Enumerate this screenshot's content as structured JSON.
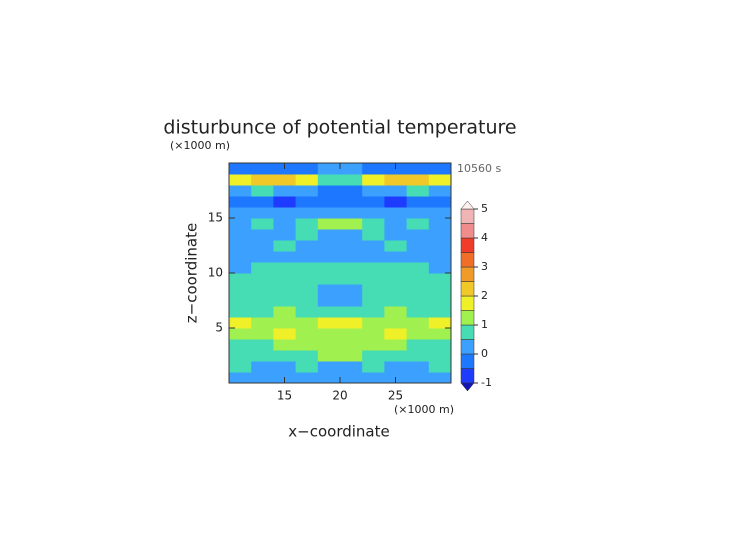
{
  "chart_data": {
    "type": "contour",
    "title": "disturbunce of potential temperature",
    "y_unit": "(×1000 m)",
    "x_unit": "(×1000 m)",
    "time_label": "10560 s",
    "xlabel": "x−coordinate",
    "ylabel": "z−coordinate",
    "xlim": [
      10,
      30
    ],
    "ylim": [
      0,
      20
    ],
    "xticks": [
      15,
      20,
      25
    ],
    "yticks": [
      5,
      10,
      15
    ],
    "x": [
      11,
      13,
      15,
      17,
      19,
      21,
      23,
      25,
      27,
      29
    ],
    "y": [
      0.5,
      1.5,
      2.5,
      3.5,
      4.5,
      5.5,
      6.5,
      7.5,
      8.5,
      9.5,
      10.5,
      11.5,
      12.5,
      13.5,
      14.5,
      15.5,
      16.5,
      17.5,
      18.5,
      19.5
    ],
    "z": [
      [
        0.3,
        0.2,
        0.4,
        0.3,
        0.2,
        0.2,
        0.3,
        0.4,
        0.2,
        0.3
      ],
      [
        0.6,
        0.4,
        0.3,
        0.6,
        0.4,
        0.4,
        0.6,
        0.3,
        0.4,
        0.6
      ],
      [
        0.8,
        0.7,
        0.6,
        0.8,
        1.2,
        1.2,
        0.8,
        0.6,
        0.7,
        0.8
      ],
      [
        0.7,
        0.8,
        1.1,
        1.2,
        1.4,
        1.4,
        1.2,
        1.1,
        0.8,
        0.7
      ],
      [
        1.3,
        1.4,
        1.6,
        1.2,
        1.3,
        1.3,
        1.2,
        1.6,
        1.4,
        1.3
      ],
      [
        1.7,
        1.4,
        1.1,
        1.0,
        1.6,
        1.6,
        1.0,
        1.1,
        1.4,
        1.7
      ],
      [
        0.9,
        0.8,
        1.1,
        0.8,
        0.9,
        0.9,
        0.8,
        1.1,
        0.8,
        0.9
      ],
      [
        0.7,
        0.8,
        0.6,
        0.7,
        0.4,
        0.4,
        0.7,
        0.6,
        0.8,
        0.7
      ],
      [
        0.7,
        0.6,
        0.7,
        0.8,
        0.3,
        0.3,
        0.8,
        0.7,
        0.6,
        0.7
      ],
      [
        0.7,
        0.6,
        0.5,
        0.6,
        0.7,
        0.7,
        0.6,
        0.5,
        0.6,
        0.7
      ],
      [
        0.4,
        0.6,
        0.7,
        0.5,
        0.6,
        0.6,
        0.5,
        0.7,
        0.6,
        0.4
      ],
      [
        0.3,
        0.2,
        0.1,
        0.2,
        0.3,
        0.3,
        0.2,
        0.1,
        0.2,
        0.3
      ],
      [
        0.3,
        0.4,
        0.6,
        0.3,
        0.2,
        0.2,
        0.3,
        0.6,
        0.4,
        0.3
      ],
      [
        0.3,
        0.2,
        0.4,
        0.6,
        0.4,
        0.4,
        0.6,
        0.4,
        0.2,
        0.3
      ],
      [
        0.4,
        0.7,
        0.4,
        0.8,
        1.3,
        1.3,
        0.8,
        0.4,
        0.7,
        0.4
      ],
      [
        0.2,
        0.1,
        0.3,
        0.2,
        0.1,
        0.1,
        0.2,
        0.3,
        0.1,
        0.2
      ],
      [
        -0.3,
        -0.2,
        -0.6,
        -0.2,
        -0.3,
        -0.3,
        -0.2,
        -0.6,
        -0.2,
        -0.3
      ],
      [
        0.3,
        0.9,
        0.4,
        0.2,
        -0.2,
        -0.2,
        0.2,
        0.4,
        0.9,
        0.3
      ],
      [
        1.8,
        2.2,
        2.4,
        1.6,
        0.7,
        0.7,
        1.6,
        2.4,
        2.2,
        1.8
      ],
      [
        -0.3,
        -0.4,
        -0.2,
        -0.3,
        0.2,
        0.2,
        -0.3,
        -0.2,
        -0.4,
        -0.3
      ]
    ],
    "levels": [
      -1,
      -0.5,
      0,
      0.5,
      1,
      1.5,
      2,
      2.5,
      3,
      3.5,
      4,
      4.5,
      5
    ],
    "colors": [
      "#1e3cff",
      "#1e78ff",
      "#3ca0ff",
      "#46dcb4",
      "#a0f050",
      "#f0f028",
      "#f0c828",
      "#f09b28",
      "#f06e28",
      "#f03c28",
      "#f08c8c",
      "#f0b4b4"
    ],
    "under_color": "#1414b4",
    "over_color": "#fff0f0",
    "colorbar_ticks": [
      -1,
      0,
      1,
      2,
      3,
      4,
      5
    ]
  }
}
